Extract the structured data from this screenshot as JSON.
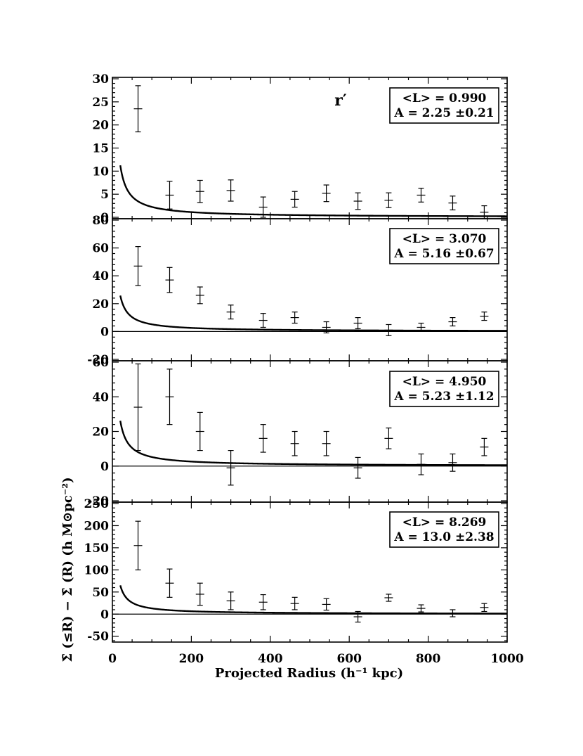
{
  "chart_data": {
    "type": "scatter",
    "xlabel": "Projected Radius (h⁻¹ kpc)",
    "ylabel": "Σ̄ (≤R) − Σ̄ (R) (h M⊙pc⁻²)",
    "xlim": [
      0,
      1000
    ],
    "xticks": [
      "0",
      "200",
      "400",
      "600",
      "800",
      "1000"
    ],
    "x": [
      65,
      145,
      222,
      300,
      382,
      462,
      542,
      622,
      700,
      782,
      862,
      942
    ],
    "band_label": "r′",
    "panels": [
      {
        "ylim": [
          0,
          30
        ],
        "yticks": [
          "30",
          "25",
          "20",
          "15",
          "10",
          "5",
          "0"
        ],
        "zero_line": false,
        "legend_L": "<L> = 0.990",
        "legend_A": "A = 2.25 ±0.21",
        "fit": {
          "A": 2.25,
          "form": "A * 100 / R"
        },
        "y": [
          23.5,
          4.8,
          5.6,
          5.8,
          2.2,
          3.9,
          5.2,
          3.5,
          3.7,
          4.8,
          3.1,
          1.1
        ],
        "yerr": [
          5.0,
          3.0,
          2.4,
          2.3,
          2.2,
          1.7,
          1.8,
          1.8,
          1.6,
          1.5,
          1.5,
          1.4
        ]
      },
      {
        "ylim": [
          -20,
          80
        ],
        "yticks": [
          "80",
          "60",
          "40",
          "20",
          "0",
          "-20"
        ],
        "zero_line": true,
        "legend_L": "<L> = 3.070",
        "legend_A": "A = 5.16 ±0.67",
        "fit": {
          "A": 5.16,
          "form": "A * 100 / R"
        },
        "y": [
          47,
          37,
          26,
          14,
          8,
          10,
          3,
          6,
          1,
          3,
          7,
          11
        ],
        "yerr": [
          14,
          9,
          6,
          5,
          5,
          4,
          4,
          4,
          4,
          3,
          3,
          3
        ]
      },
      {
        "ylim": [
          -20,
          60
        ],
        "yticks": [
          "60",
          "40",
          "20",
          "0",
          "-20"
        ],
        "zero_line": true,
        "legend_L": "<L> = 4.950",
        "legend_A": "A = 5.23 ±1.12",
        "fit": {
          "A": 5.23,
          "form": "A * 100 / R"
        },
        "y": [
          34,
          40,
          20,
          -1,
          16,
          13,
          13,
          -1,
          16,
          1,
          2,
          11
        ],
        "yerr": [
          25,
          16,
          11,
          10,
          8,
          7,
          7,
          6,
          6,
          6,
          5,
          5
        ]
      },
      {
        "ylim": [
          -60,
          250
        ],
        "yticks": [
          "250",
          "200",
          "150",
          "100",
          "50",
          "0",
          "-50"
        ],
        "zero_line": true,
        "legend_L": "<L> = 8.269",
        "legend_A": "A = 13.0 ±2.38",
        "fit": {
          "A": 13.0,
          "form": "A * 100 / R"
        },
        "y": [
          155,
          70,
          45,
          30,
          27,
          24,
          22,
          -6,
          37,
          13,
          2,
          15
        ],
        "yerr": [
          55,
          32,
          25,
          20,
          17,
          14,
          13,
          12,
          8,
          8,
          8,
          9
        ]
      }
    ]
  }
}
